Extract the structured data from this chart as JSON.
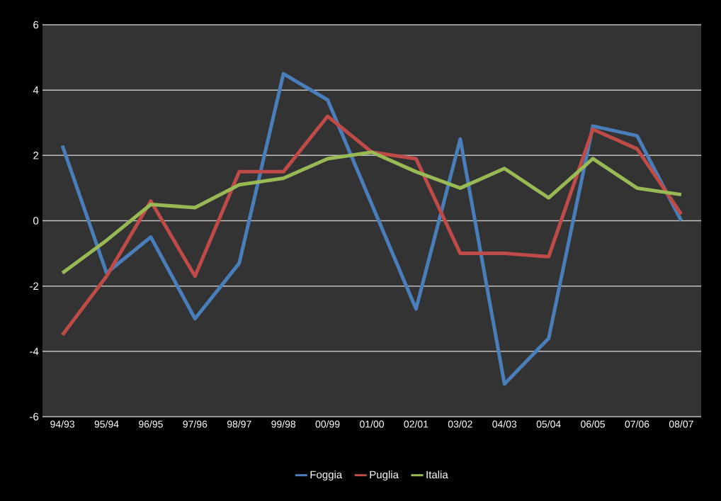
{
  "chart_data": {
    "type": "line",
    "categories": [
      "94/93",
      "95/94",
      "96/95",
      "97/96",
      "98/97",
      "99/98",
      "00/99",
      "01/00",
      "02/01",
      "03/02",
      "04/03",
      "05/04",
      "06/05",
      "07/06",
      "08/07"
    ],
    "series": [
      {
        "name": "Foggia",
        "color": "#4a7ebb",
        "values": [
          2.3,
          -1.6,
          -0.5,
          -3.0,
          -1.3,
          4.5,
          3.7,
          0.5,
          -2.7,
          2.5,
          -5.0,
          -3.6,
          2.9,
          2.6,
          0.0
        ]
      },
      {
        "name": "Puglia",
        "color": "#be4b48",
        "values": [
          -3.5,
          -1.7,
          0.6,
          -1.7,
          1.5,
          1.5,
          3.2,
          2.1,
          1.9,
          -1.0,
          -1.0,
          -1.1,
          2.8,
          2.2,
          0.2
        ]
      },
      {
        "name": "Italia",
        "color": "#98b954",
        "values": [
          -1.6,
          -0.6,
          0.5,
          0.4,
          1.1,
          1.3,
          1.9,
          2.1,
          1.5,
          1.0,
          1.6,
          0.7,
          1.9,
          1.0,
          0.8
        ]
      }
    ],
    "ylim": [
      -6,
      6
    ],
    "yticks": [
      -6,
      -4,
      -2,
      0,
      2,
      4,
      6
    ],
    "grid": "y",
    "legend": "bottom",
    "marker": "none",
    "line_style": "solid"
  }
}
